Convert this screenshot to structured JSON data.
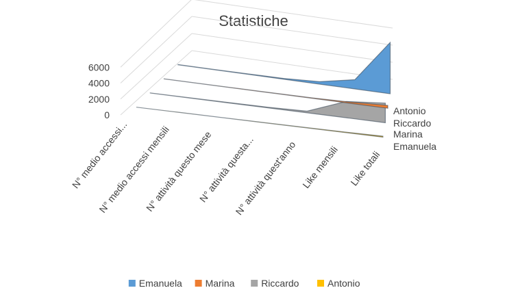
{
  "chart_data": {
    "type": "area",
    "title": "Statistiche",
    "categories": [
      "N° medio accessi...",
      "N° medio accessi mensili",
      "N° attività questo mese",
      "N° attività questa...",
      "N° attività quest'anno",
      "Like mensili",
      "Like totali"
    ],
    "series": [
      {
        "name": "Emanuela",
        "color": "#5B9BD5",
        "values": [
          20,
          30,
          60,
          100,
          300,
          1100,
          6100
        ]
      },
      {
        "name": "Marina",
        "color": "#ED7D31",
        "values": [
          10,
          10,
          20,
          30,
          60,
          150,
          350
        ]
      },
      {
        "name": "Riccardo",
        "color": "#A5A5A5",
        "values": [
          20,
          30,
          60,
          80,
          200,
          2000,
          2400
        ]
      },
      {
        "name": "Antonio",
        "color": "#FFC000",
        "values": [
          5,
          8,
          12,
          15,
          30,
          60,
          120
        ]
      }
    ],
    "depth_labels": [
      "Antonio",
      "Riccardo",
      "Marina",
      "Emanuela"
    ],
    "y_ticks": [
      0,
      2000,
      4000,
      6000
    ],
    "ylim": [
      0,
      6000
    ],
    "grid": true,
    "legend_position": "bottom"
  }
}
